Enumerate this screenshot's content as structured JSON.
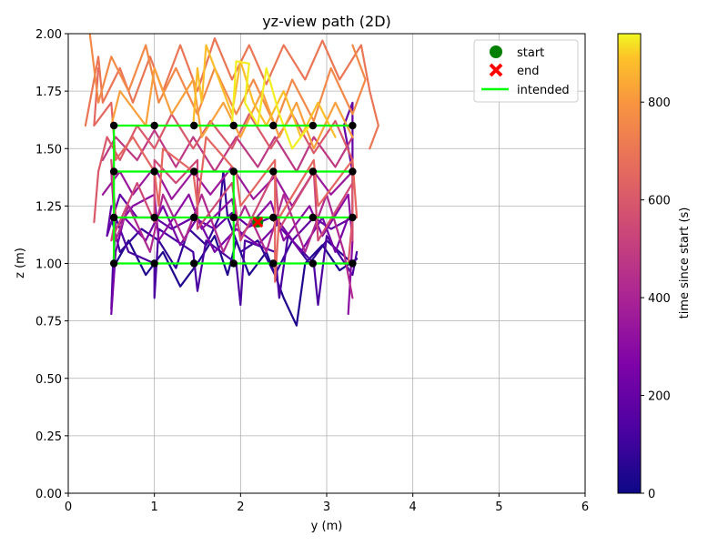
{
  "chart_data": {
    "type": "line",
    "title": "yz-view path (2D)",
    "xlabel": "y (m)",
    "ylabel": "z (m)",
    "xlim": [
      0,
      6
    ],
    "ylim": [
      0,
      2.0
    ],
    "xticks": [
      "0",
      "1",
      "2",
      "3",
      "4",
      "5",
      "6"
    ],
    "yticks": [
      "0.00",
      "0.25",
      "0.50",
      "0.75",
      "1.00",
      "1.25",
      "1.50",
      "1.75",
      "2.00"
    ],
    "grid": true,
    "legend": {
      "placement": "top-right",
      "entries": [
        {
          "label": "start",
          "marker": "circle",
          "color": "#008000"
        },
        {
          "label": "end",
          "marker": "x",
          "color": "#ff0000"
        },
        {
          "label": "intended",
          "marker": "line",
          "color": "#00ff00"
        }
      ]
    },
    "colorbar": {
      "label": "time since start (s)",
      "ticks": [
        "0",
        "200",
        "400",
        "600",
        "800"
      ],
      "range": [
        0,
        940
      ],
      "colormap": "plasma"
    },
    "start_point": {
      "y": 2.2,
      "z": 1.18
    },
    "end_point": {
      "y": 2.2,
      "z": 1.18
    },
    "intended_waypoints": {
      "y": [
        0.53,
        1.0,
        1.46,
        1.92,
        2.38,
        2.84,
        3.3
      ],
      "z": [
        1.0,
        1.2,
        1.4,
        1.6
      ]
    },
    "series": [
      {
        "t": 40,
        "points": [
          [
            0.55,
            1.0
          ],
          [
            0.7,
            1.1
          ],
          [
            0.9,
            0.95
          ],
          [
            1.1,
            1.05
          ],
          [
            1.3,
            0.9
          ],
          [
            1.5,
            1.0
          ],
          [
            1.7,
            1.12
          ],
          [
            1.85,
            0.95
          ],
          [
            1.95,
            1.1
          ],
          [
            2.1,
            0.95
          ],
          [
            2.3,
            1.05
          ],
          [
            2.5,
            0.85
          ],
          [
            2.65,
            0.73
          ],
          [
            2.75,
            1.0
          ],
          [
            2.95,
            1.08
          ],
          [
            3.15,
            0.97
          ],
          [
            3.35,
            1.02
          ]
        ]
      },
      {
        "t": 80,
        "points": [
          [
            0.5,
            1.2
          ],
          [
            0.6,
            1.05
          ],
          [
            0.85,
            1.15
          ],
          [
            1.05,
            1.1
          ],
          [
            1.25,
            0.98
          ],
          [
            1.4,
            1.15
          ],
          [
            1.6,
            1.08
          ],
          [
            1.75,
            1.2
          ],
          [
            1.8,
            1.4
          ],
          [
            1.85,
            1.2
          ],
          [
            2.0,
            1.05
          ],
          [
            2.2,
            1.1
          ],
          [
            2.4,
            0.95
          ],
          [
            2.6,
            1.1
          ],
          [
            2.8,
            1.0
          ],
          [
            3.0,
            1.1
          ],
          [
            3.3,
            1.0
          ]
        ]
      },
      {
        "t": 130,
        "points": [
          [
            0.52,
            1.0
          ],
          [
            0.5,
            0.8
          ],
          [
            0.55,
            1.2
          ],
          [
            0.7,
            1.05
          ],
          [
            1.0,
            1.0
          ],
          [
            1.0,
            0.85
          ],
          [
            1.05,
            1.15
          ],
          [
            1.45,
            1.05
          ],
          [
            1.5,
            0.88
          ],
          [
            1.6,
            1.1
          ],
          [
            1.95,
            1.0
          ],
          [
            2.0,
            0.82
          ],
          [
            2.05,
            1.1
          ],
          [
            2.4,
            1.05
          ],
          [
            2.45,
            0.85
          ],
          [
            2.55,
            1.12
          ],
          [
            2.85,
            1.0
          ],
          [
            2.9,
            0.82
          ],
          [
            3.0,
            1.12
          ],
          [
            3.3,
            0.95
          ],
          [
            3.35,
            1.05
          ]
        ]
      },
      {
        "t": 190,
        "points": [
          [
            0.5,
            1.25
          ],
          [
            0.45,
            1.12
          ],
          [
            0.6,
            1.3
          ],
          [
            0.8,
            1.2
          ],
          [
            1.0,
            1.2
          ],
          [
            1.2,
            1.15
          ],
          [
            1.45,
            1.2
          ],
          [
            1.7,
            1.15
          ],
          [
            1.9,
            1.22
          ],
          [
            2.1,
            1.16
          ],
          [
            2.35,
            1.2
          ],
          [
            2.6,
            1.1
          ],
          [
            2.85,
            1.2
          ],
          [
            3.05,
            1.15
          ],
          [
            3.3,
            1.2
          ],
          [
            3.3,
            1.7
          ],
          [
            3.2,
            1.6
          ],
          [
            3.3,
            1.4
          ]
        ]
      },
      {
        "t": 240,
        "points": [
          [
            0.5,
            0.78
          ],
          [
            0.55,
            1.05
          ],
          [
            0.65,
            1.2
          ],
          [
            0.9,
            1.1
          ],
          [
            1.1,
            1.25
          ],
          [
            1.3,
            1.08
          ],
          [
            1.5,
            1.2
          ],
          [
            1.7,
            1.05
          ],
          [
            1.95,
            1.15
          ],
          [
            2.2,
            1.08
          ],
          [
            2.45,
            1.18
          ],
          [
            2.7,
            1.05
          ],
          [
            2.95,
            1.2
          ],
          [
            3.1,
            1.05
          ],
          [
            3.25,
            1.2
          ]
        ]
      },
      {
        "t": 300,
        "points": [
          [
            0.55,
            1.15
          ],
          [
            0.75,
            1.25
          ],
          [
            1.0,
            1.3
          ],
          [
            1.05,
            1.1
          ],
          [
            1.4,
            1.3
          ],
          [
            1.55,
            1.15
          ],
          [
            1.9,
            1.28
          ],
          [
            2.0,
            1.12
          ],
          [
            2.35,
            1.27
          ],
          [
            2.5,
            1.1
          ],
          [
            2.8,
            1.25
          ],
          [
            2.95,
            1.12
          ],
          [
            3.25,
            1.3
          ],
          [
            3.3,
            1.1
          ],
          [
            3.25,
            0.78
          ]
        ]
      },
      {
        "t": 350,
        "points": [
          [
            0.4,
            1.3
          ],
          [
            0.6,
            1.4
          ],
          [
            0.75,
            1.3
          ],
          [
            1.0,
            1.42
          ],
          [
            1.2,
            1.28
          ],
          [
            1.45,
            1.4
          ],
          [
            1.65,
            1.3
          ],
          [
            1.9,
            1.42
          ],
          [
            2.15,
            1.28
          ],
          [
            2.4,
            1.38
          ],
          [
            2.6,
            1.25
          ],
          [
            2.85,
            1.4
          ],
          [
            3.05,
            1.3
          ],
          [
            3.3,
            1.4
          ]
        ]
      },
      {
        "t": 420,
        "points": [
          [
            0.5,
            1.4
          ],
          [
            0.55,
            1.1
          ],
          [
            0.7,
            1.25
          ],
          [
            0.95,
            1.05
          ],
          [
            1.1,
            1.3
          ],
          [
            1.35,
            1.1
          ],
          [
            1.55,
            1.3
          ],
          [
            1.8,
            1.05
          ],
          [
            2.05,
            1.25
          ],
          [
            2.3,
            1.05
          ],
          [
            2.5,
            1.3
          ],
          [
            2.75,
            1.05
          ],
          [
            3.0,
            1.3
          ],
          [
            3.2,
            1.05
          ],
          [
            3.3,
            0.85
          ]
        ]
      },
      {
        "t": 480,
        "points": [
          [
            0.4,
            1.45
          ],
          [
            0.55,
            1.55
          ],
          [
            0.8,
            1.45
          ],
          [
            1.0,
            1.58
          ],
          [
            1.25,
            1.42
          ],
          [
            1.45,
            1.55
          ],
          [
            1.7,
            1.4
          ],
          [
            1.95,
            1.55
          ],
          [
            2.2,
            1.42
          ],
          [
            2.4,
            1.55
          ],
          [
            2.65,
            1.4
          ],
          [
            2.85,
            1.55
          ],
          [
            3.1,
            1.42
          ],
          [
            3.3,
            1.55
          ]
        ]
      },
      {
        "t": 540,
        "points": [
          [
            0.5,
            1.45
          ],
          [
            0.55,
            1.2
          ],
          [
            0.5,
            1.1
          ],
          [
            0.8,
            1.35
          ],
          [
            1.0,
            1.18
          ],
          [
            1.0,
            1.45
          ],
          [
            1.25,
            1.35
          ],
          [
            1.5,
            1.45
          ],
          [
            1.5,
            1.15
          ],
          [
            1.9,
            1.35
          ],
          [
            2.0,
            1.1
          ],
          [
            2.4,
            1.4
          ],
          [
            2.45,
            1.15
          ],
          [
            2.85,
            1.4
          ],
          [
            2.9,
            1.1
          ],
          [
            3.3,
            1.35
          ],
          [
            3.3,
            1.1
          ]
        ]
      },
      {
        "t": 600,
        "points": [
          [
            0.3,
            1.18
          ],
          [
            0.35,
            1.4
          ],
          [
            0.45,
            1.55
          ],
          [
            0.6,
            1.45
          ],
          [
            0.8,
            1.6
          ],
          [
            1.0,
            1.5
          ],
          [
            1.2,
            1.65
          ],
          [
            1.45,
            1.5
          ],
          [
            1.65,
            1.62
          ],
          [
            1.9,
            1.5
          ],
          [
            2.1,
            1.65
          ],
          [
            2.35,
            1.5
          ],
          [
            2.6,
            1.65
          ],
          [
            2.85,
            1.48
          ],
          [
            3.1,
            1.62
          ],
          [
            3.3,
            1.45
          ],
          [
            3.3,
            1.2
          ],
          [
            3.25,
            1.0
          ]
        ]
      },
      {
        "t": 650,
        "points": [
          [
            0.35,
            1.85
          ],
          [
            0.3,
            1.6
          ],
          [
            0.5,
            1.7
          ],
          [
            0.55,
            1.45
          ],
          [
            0.75,
            1.55
          ],
          [
            1.0,
            1.4
          ],
          [
            1.05,
            1.25
          ],
          [
            1.1,
            1.5
          ],
          [
            1.45,
            1.4
          ],
          [
            1.5,
            1.25
          ],
          [
            1.6,
            1.55
          ],
          [
            1.95,
            1.4
          ],
          [
            2.0,
            1.25
          ],
          [
            2.4,
            1.45
          ],
          [
            2.4,
            0.92
          ],
          [
            2.45,
            1.2
          ],
          [
            2.85,
            1.45
          ],
          [
            2.9,
            1.25
          ],
          [
            3.3,
            1.45
          ],
          [
            3.35,
            1.2
          ]
        ]
      },
      {
        "t": 700,
        "points": [
          [
            0.2,
            1.6
          ],
          [
            0.35,
            1.9
          ],
          [
            0.4,
            1.7
          ],
          [
            0.6,
            1.85
          ],
          [
            0.75,
            1.7
          ],
          [
            0.95,
            1.9
          ],
          [
            1.1,
            1.75
          ],
          [
            1.3,
            1.95
          ],
          [
            1.5,
            1.75
          ],
          [
            1.7,
            1.98
          ],
          [
            1.9,
            1.8
          ],
          [
            2.1,
            1.95
          ],
          [
            2.3,
            1.78
          ],
          [
            2.5,
            1.95
          ],
          [
            2.75,
            1.8
          ],
          [
            2.95,
            1.97
          ],
          [
            3.15,
            1.8
          ],
          [
            3.4,
            1.95
          ],
          [
            3.5,
            1.75
          ],
          [
            3.6,
            1.6
          ],
          [
            3.5,
            1.5
          ]
        ]
      },
      {
        "t": 760,
        "points": [
          [
            0.25,
            2.0
          ],
          [
            0.35,
            1.7
          ],
          [
            0.5,
            1.9
          ],
          [
            0.7,
            1.75
          ],
          [
            0.9,
            1.95
          ],
          [
            1.05,
            1.7
          ],
          [
            1.25,
            1.85
          ],
          [
            1.5,
            1.65
          ],
          [
            1.7,
            1.85
          ],
          [
            1.95,
            1.65
          ],
          [
            2.15,
            1.8
          ],
          [
            2.4,
            1.6
          ],
          [
            2.6,
            1.8
          ],
          [
            2.85,
            1.62
          ],
          [
            3.05,
            1.85
          ],
          [
            3.3,
            1.65
          ],
          [
            3.45,
            1.8
          ],
          [
            3.3,
            1.95
          ]
        ]
      },
      {
        "t": 820,
        "points": [
          [
            0.5,
            1.6
          ],
          [
            0.6,
            1.75
          ],
          [
            0.9,
            1.6
          ],
          [
            1.0,
            1.85
          ],
          [
            1.2,
            1.65
          ],
          [
            1.45,
            1.8
          ],
          [
            1.55,
            1.55
          ],
          [
            1.8,
            1.7
          ],
          [
            2.0,
            1.55
          ],
          [
            2.25,
            1.75
          ],
          [
            2.45,
            1.55
          ],
          [
            2.65,
            1.7
          ],
          [
            2.85,
            1.5
          ],
          [
            3.1,
            1.7
          ],
          [
            3.3,
            1.55
          ]
        ]
      },
      {
        "t": 880,
        "points": [
          [
            1.45,
            1.6
          ],
          [
            1.5,
            1.85
          ],
          [
            1.55,
            1.7
          ],
          [
            1.6,
            1.95
          ],
          [
            1.75,
            1.8
          ],
          [
            1.9,
            1.65
          ],
          [
            2.0,
            1.88
          ],
          [
            2.15,
            1.7
          ],
          [
            2.3,
            1.6
          ],
          [
            2.5,
            1.75
          ],
          [
            2.7,
            1.55
          ],
          [
            2.9,
            1.7
          ],
          [
            3.1,
            1.55
          ]
        ]
      },
      {
        "t": 930,
        "points": [
          [
            1.9,
            1.6
          ],
          [
            1.95,
            1.88
          ],
          [
            2.1,
            1.87
          ],
          [
            2.05,
            1.7
          ],
          [
            2.2,
            1.6
          ],
          [
            2.3,
            1.85
          ],
          [
            2.45,
            1.65
          ],
          [
            2.6,
            1.5
          ],
          [
            2.8,
            1.6
          ]
        ]
      }
    ]
  }
}
